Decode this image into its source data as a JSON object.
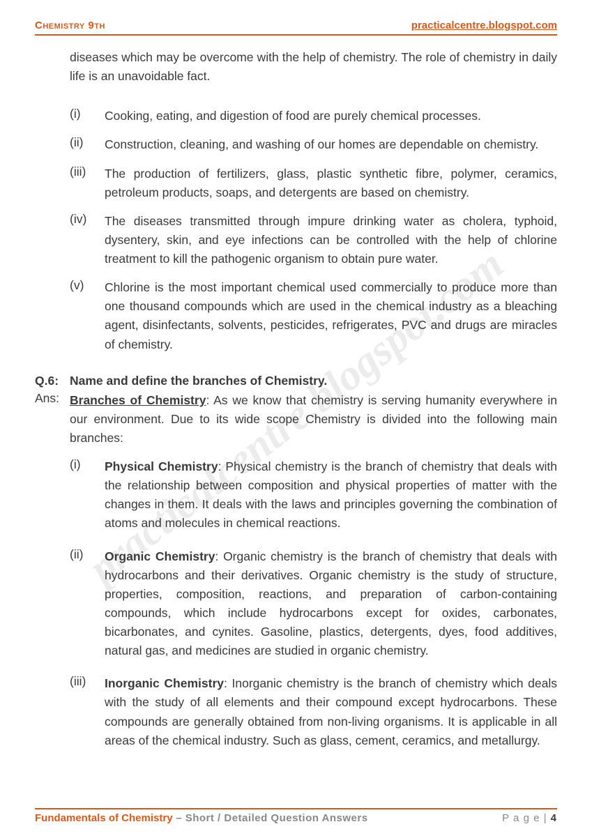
{
  "header": {
    "left": "Chemistry 9th",
    "right": "practicalcentre.blogspot.com"
  },
  "watermark": "practicalcentre.blogspot.com",
  "intro": "diseases which may be overcome with the help of chemistry. The role of chemistry in daily life is an unavoidable fact.",
  "points": [
    {
      "m": "(i)",
      "t": "Cooking, eating, and digestion of food are purely chemical processes."
    },
    {
      "m": "(ii)",
      "t": "Construction, cleaning, and washing of our homes are dependable on chemistry."
    },
    {
      "m": "(iii)",
      "t": "The production of fertilizers, glass, plastic synthetic fibre, polymer, ceramics, petroleum products, soaps, and detergents are based on chemistry."
    },
    {
      "m": "(iv)",
      "t": "The diseases transmitted through impure drinking water as cholera, typhoid, dysentery, skin, and eye infections can be controlled with the help of chlorine treatment to kill the pathogenic organism to obtain pure water."
    },
    {
      "m": "(v)",
      "t": "Chlorine is the most important chemical used commercially to produce more than one thousand compounds which are used in the chemical industry as a bleaching agent, disinfectants, solvents, pesticides, refrigerates, PVC and drugs are miracles of chemistry."
    }
  ],
  "question": {
    "label": "Q.6:",
    "text": "Name and define the branches of Chemistry."
  },
  "answer": {
    "label": "Ans:",
    "head": "Branches of Chemistry",
    "body": ": As we know that chemistry is serving humanity everywhere in our environment. Due to its wide scope Chemistry is divided into the following main branches:"
  },
  "branches": [
    {
      "m": "(i)",
      "name": "Physical Chemistry",
      "t": ": Physical chemistry is the branch of chemistry that deals with the relationship between composition and physical properties of matter with the changes in them. It deals with the laws and principles governing the combination of atoms and molecules in chemical reactions."
    },
    {
      "m": "(ii)",
      "name": "Organic Chemistry",
      "t": ": Organic chemistry is the branch of chemistry that deals with hydrocarbons and their derivatives. Organic chemistry is the study of structure, properties, composition, reactions, and preparation of carbon-containing compounds, which include hydrocarbons except for oxides, carbonates, bicarbonates, and cynites. Gasoline, plastics, detergents, dyes, food additives, natural gas, and medicines are studied in organic chemistry."
    },
    {
      "m": "(iii)",
      "name": "Inorganic Chemistry",
      "t": ": Inorganic chemistry is the branch of chemistry which deals with the study of all elements and their compound except hydrocarbons. These compounds are generally obtained from non-living organisms. It is applicable in all areas of the chemical industry. Such as glass, cement, ceramics, and metallurgy."
    }
  ],
  "footer": {
    "title": "Fundamentals of Chemistry",
    "sub": " – Short / Detailed Question Answers",
    "page_label": "P a g e  | ",
    "page_num": "4"
  }
}
